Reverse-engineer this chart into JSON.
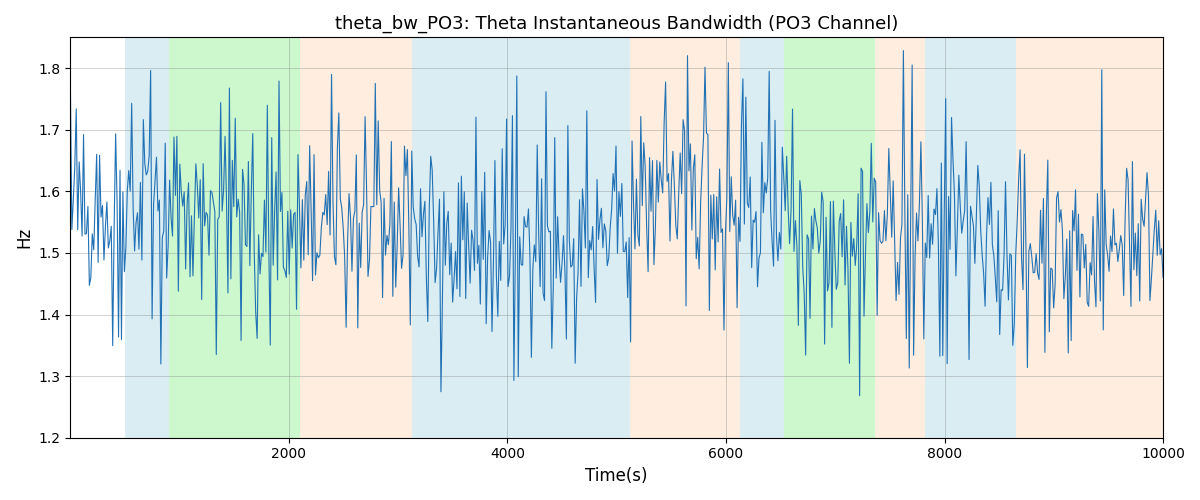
{
  "title": "theta_bw_PO3: Theta Instantaneous Bandwidth (PO3 Channel)",
  "xlabel": "Time(s)",
  "ylabel": "Hz",
  "xlim": [
    0,
    10000
  ],
  "ylim": [
    1.2,
    1.85
  ],
  "line_color": "#2171b5",
  "line_width": 0.8,
  "background_regions": [
    {
      "xmin": 500,
      "xmax": 900,
      "color": "#add8e6",
      "alpha": 0.45
    },
    {
      "xmin": 900,
      "xmax": 2100,
      "color": "#90ee90",
      "alpha": 0.45
    },
    {
      "xmin": 2100,
      "xmax": 3130,
      "color": "#ffdab9",
      "alpha": 0.45
    },
    {
      "xmin": 3130,
      "xmax": 3550,
      "color": "#add8e6",
      "alpha": 0.45
    },
    {
      "xmin": 3550,
      "xmax": 5120,
      "color": "#add8e6",
      "alpha": 0.45
    },
    {
      "xmin": 5120,
      "xmax": 6130,
      "color": "#ffdab9",
      "alpha": 0.45
    },
    {
      "xmin": 6130,
      "xmax": 6530,
      "color": "#add8e6",
      "alpha": 0.45
    },
    {
      "xmin": 6530,
      "xmax": 7360,
      "color": "#90ee90",
      "alpha": 0.45
    },
    {
      "xmin": 7360,
      "xmax": 7820,
      "color": "#ffdab9",
      "alpha": 0.45
    },
    {
      "xmin": 7820,
      "xmax": 8650,
      "color": "#add8e6",
      "alpha": 0.45
    },
    {
      "xmin": 8650,
      "xmax": 10000,
      "color": "#ffdab9",
      "alpha": 0.45
    }
  ],
  "seed": 42,
  "n_points": 750,
  "t_start": 0,
  "t_end": 10000,
  "signal_mean": 1.545,
  "signal_std": 0.06,
  "spike_count": 180,
  "spike_min": 0.06,
  "spike_max": 0.22,
  "title_fontsize": 13,
  "yticks": [
    1.2,
    1.3,
    1.4,
    1.5,
    1.6,
    1.7,
    1.8
  ],
  "xticks": [
    2000,
    4000,
    6000,
    8000,
    10000
  ]
}
